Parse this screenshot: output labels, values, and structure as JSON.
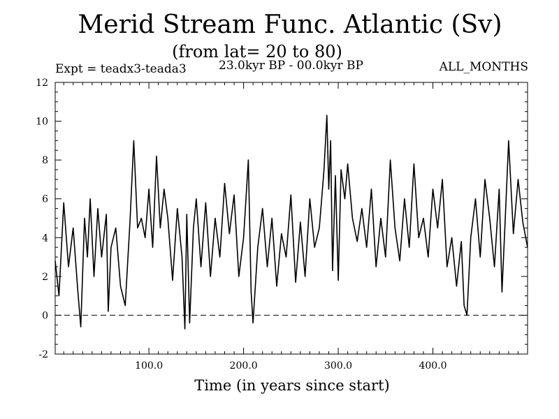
{
  "title": "Merid Stream Func. Atlantic (Sv)",
  "subtitle": "(from lat= 20 to 80)",
  "expt_label": "Expt = teadx3-teada3",
  "period_label": "23.0kyr BP - 00.0kyr BP",
  "months_label": "ALL_MONTHS",
  "colors": {
    "line": "#000000",
    "background": "#ffffff"
  },
  "chart_data": {
    "type": "line",
    "xlabel": "Time (in years since start)",
    "ylabel": "",
    "xlim": [
      1,
      500
    ],
    "ylim": [
      -2,
      12
    ],
    "x_ticks": [
      100,
      200,
      300,
      400
    ],
    "x_tick_labels": [
      "100.0",
      "200.0",
      "300.0",
      "400.0"
    ],
    "y_ticks": [
      -2,
      0,
      2,
      4,
      6,
      8,
      10,
      12
    ],
    "y_tick_labels": [
      "-2",
      "0",
      "2",
      "4",
      "6",
      "8",
      "10",
      "12"
    ],
    "grid": false,
    "reference_line": {
      "y": 0,
      "style": "dashed"
    },
    "series": [
      {
        "x": [
          1,
          5,
          10,
          15,
          20,
          25,
          28,
          32,
          35,
          38,
          42,
          46,
          50,
          55,
          57,
          60,
          65,
          70,
          75,
          80,
          84,
          88,
          92,
          96,
          100,
          104,
          108,
          112,
          116,
          120,
          125,
          130,
          135,
          138,
          140,
          143,
          147,
          150,
          155,
          160,
          165,
          170,
          175,
          180,
          185,
          190,
          195,
          200,
          205,
          208,
          210,
          215,
          220,
          225,
          230,
          235,
          240,
          245,
          250,
          255,
          260,
          265,
          270,
          275,
          280,
          285,
          288,
          290,
          292,
          294,
          297,
          300,
          303,
          307,
          310,
          315,
          320,
          325,
          330,
          335,
          340,
          345,
          350,
          355,
          360,
          365,
          370,
          375,
          380,
          385,
          390,
          395,
          400,
          405,
          410,
          415,
          420,
          425,
          430,
          433,
          436,
          440,
          445,
          450,
          455,
          460,
          465,
          470,
          473,
          476,
          480,
          485,
          490,
          495,
          500
        ],
        "y": [
          2.8,
          1.0,
          5.8,
          2.5,
          4.5,
          1.2,
          -0.6,
          5.0,
          3.0,
          6.0,
          2.0,
          5.5,
          3.0,
          5.2,
          0.2,
          3.5,
          4.5,
          1.5,
          0.5,
          4.8,
          9.0,
          4.5,
          5.0,
          4.0,
          6.5,
          3.5,
          8.2,
          4.5,
          6.5,
          5.0,
          1.8,
          5.5,
          3.0,
          -0.7,
          5.2,
          -0.4,
          4.5,
          6.0,
          2.5,
          5.8,
          2.0,
          5.0,
          3.0,
          6.8,
          4.2,
          6.2,
          2.0,
          4.0,
          8.0,
          1.2,
          -0.4,
          3.5,
          5.5,
          2.5,
          5.0,
          1.5,
          4.2,
          3.0,
          6.2,
          1.7,
          4.8,
          2.0,
          6.0,
          3.5,
          4.5,
          7.5,
          10.3,
          6.5,
          9.0,
          2.3,
          7.2,
          1.8,
          7.5,
          6.0,
          7.8,
          5.0,
          3.8,
          5.5,
          3.5,
          6.5,
          2.5,
          5.0,
          3.0,
          8.0,
          4.5,
          2.8,
          6.0,
          3.5,
          7.8,
          4.0,
          5.0,
          3.0,
          6.5,
          4.5,
          7.0,
          2.5,
          4.0,
          1.5,
          3.8,
          0.5,
          0.0,
          4.0,
          6.0,
          3.0,
          7.0,
          5.0,
          2.5,
          6.5,
          1.2,
          4.5,
          9.0,
          4.2,
          7.0,
          4.8,
          3.5
        ]
      }
    ]
  }
}
